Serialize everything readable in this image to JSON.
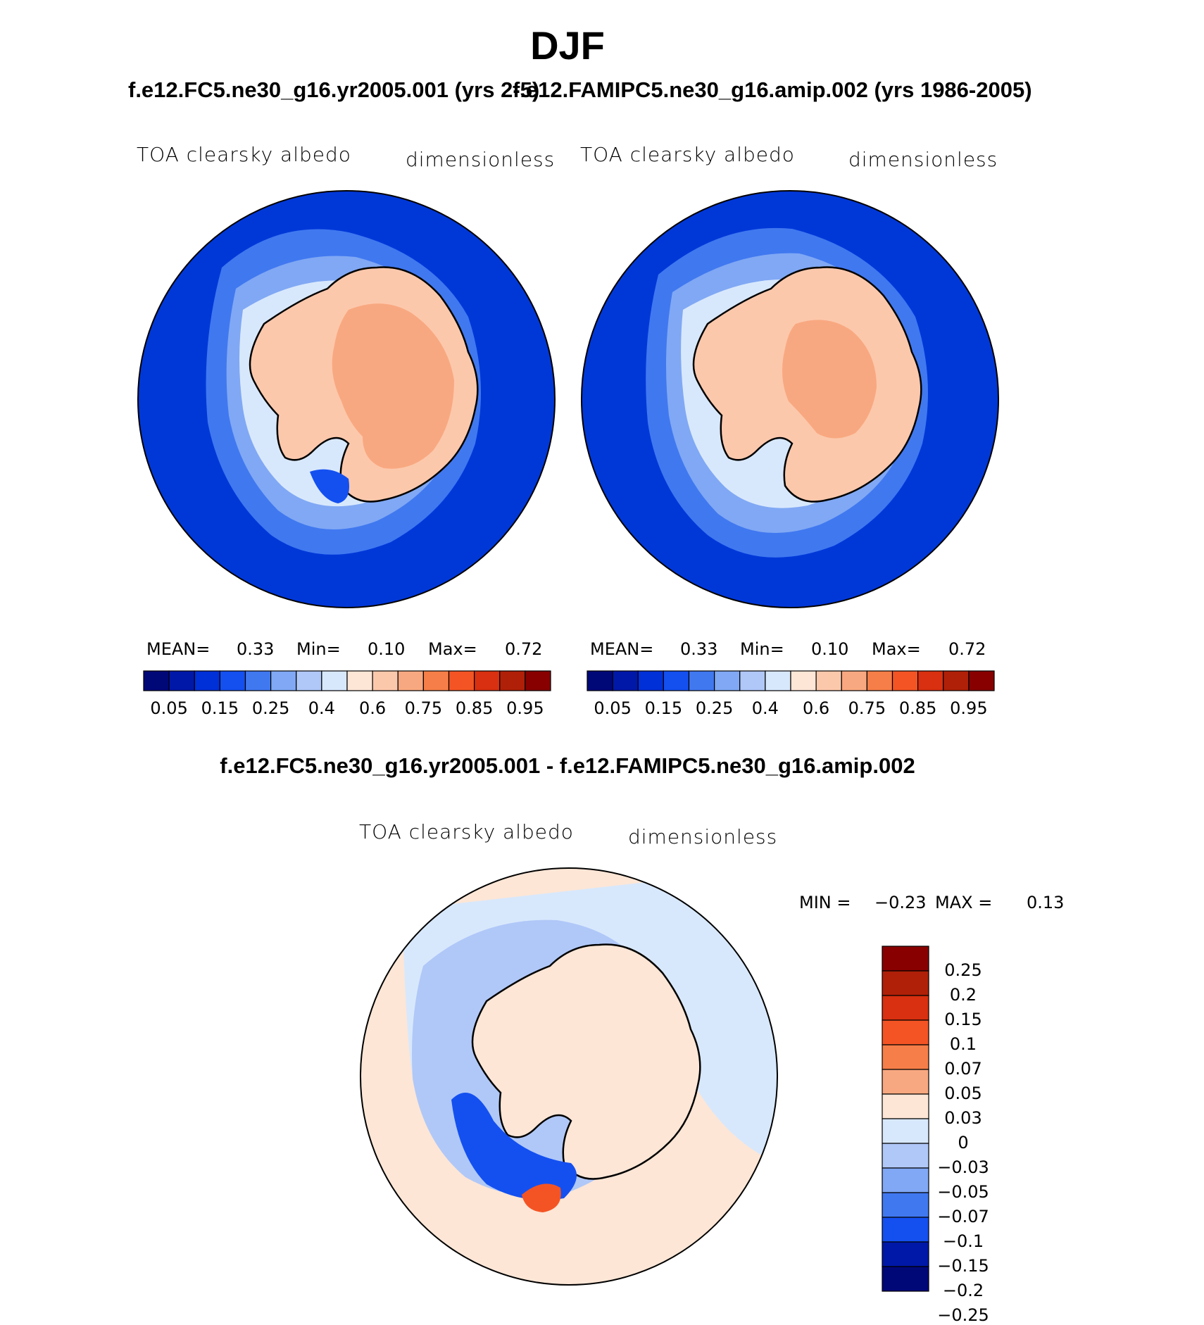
{
  "title": "DJF",
  "panels": [
    {
      "case_title": "f.e12.FC5.ne30_g16.yr2005.001 (yrs 2-5)",
      "variable": "TOA clearsky albedo",
      "units": "dimensionless",
      "stats": {
        "mean_label": "MEAN=",
        "mean": "0.33",
        "min_label": "Min=",
        "min": "0.10",
        "max_label": "Max=",
        "max": "0.72"
      }
    },
    {
      "case_title": "f.e12.FAMIPC5.ne30_g16.amip.002 (yrs 1986-2005)",
      "variable": "TOA clearsky albedo",
      "units": "dimensionless",
      "stats": {
        "mean_label": "MEAN=",
        "mean": "0.33",
        "min_label": "Min=",
        "min": "0.10",
        "max_label": "Max=",
        "max": "0.72"
      }
    }
  ],
  "colorbar": {
    "colors": [
      "#000878",
      "#0018a8",
      "#0030d8",
      "#1450f0",
      "#4078f0",
      "#80a8f4",
      "#b0c8f8",
      "#d8e8fc",
      "#fde6d6",
      "#fcc8ac",
      "#f8a880",
      "#f67e48",
      "#f45424",
      "#d83010",
      "#b02008",
      "#880000"
    ],
    "tick_labels": [
      "0.05",
      "0.15",
      "0.25",
      "0.4",
      "0.6",
      "0.75",
      "0.85",
      "0.95"
    ]
  },
  "difference": {
    "title": "f.e12.FC5.ne30_g16.yr2005.001 - f.e12.FAMIPC5.ne30_g16.amip.002",
    "variable": "TOA clearsky albedo",
    "units": "dimensionless",
    "min_label": "MIN =",
    "min": "−0.23",
    "max_label": "MAX =",
    "max": "0.13",
    "colorbar": {
      "colors": [
        "#880000",
        "#b02008",
        "#d83010",
        "#f45424",
        "#f67e48",
        "#f8a880",
        "#fde6d6",
        "#d8e8fc",
        "#b0c8f8",
        "#80a8f4",
        "#4078f0",
        "#1450f0",
        "#0018a8",
        "#000878"
      ],
      "tick_labels": [
        "0.25",
        "0.2",
        "0.15",
        "0.1",
        "0.07",
        "0.05",
        "0.03",
        "0",
        "−0.03",
        "−0.05",
        "−0.07",
        "−0.1",
        "−0.15",
        "−0.2",
        "−0.25"
      ]
    }
  },
  "map_colors": {
    "ocean_blue": "#0038d8",
    "land": "#fcc8ac",
    "interior": "#f8a880",
    "diff_background": "#fde6d6",
    "diff_ocean": "#d8e8fc"
  }
}
